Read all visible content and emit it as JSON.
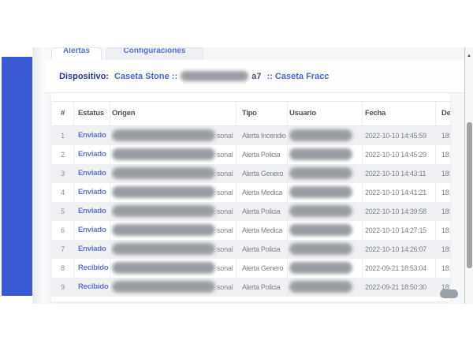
{
  "tabs": [
    {
      "label": "Alertas",
      "active": true
    },
    {
      "label": "Configuraciones",
      "active": false
    }
  ],
  "device_bar": {
    "label": "Dispositivo:",
    "device_name": "Caseta Stone",
    "separator": "::",
    "device_id_redacted": true,
    "device_id_visible_suffix": "a7",
    "location": "Caseta Fracc"
  },
  "table": {
    "columns": [
      "#",
      "Estatus",
      "Origen",
      "Tipo",
      "Usuario",
      "Fecha",
      "Des"
    ],
    "redaction": {
      "origen_redacted": true,
      "origen_visible_suffix": "sonal",
      "usuario_redacted": true
    },
    "last_column_visible_value": "18:",
    "rows": [
      {
        "num": "1",
        "estatus": "Enviado",
        "tipo": "Alerta Incendio",
        "fecha": "2022-10-10 14:45:59"
      },
      {
        "num": "2",
        "estatus": "Enviado",
        "tipo": "Alerta Policia",
        "fecha": "2022-10-10 14:45:29"
      },
      {
        "num": "3",
        "estatus": "Enviado",
        "tipo": "Alerta Genero",
        "fecha": "2022-10-10 14:43:11"
      },
      {
        "num": "4",
        "estatus": "Enviado",
        "tipo": "Alerta Medica",
        "fecha": "2022-10-10 14:41:21"
      },
      {
        "num": "5",
        "estatus": "Enviado",
        "tipo": "Alerta Policia",
        "fecha": "2022-10-10 14:39:58"
      },
      {
        "num": "6",
        "estatus": "Enviado",
        "tipo": "Alerta Medica",
        "fecha": "2022-10-10 14:27:15"
      },
      {
        "num": "7",
        "estatus": "Enviado",
        "tipo": "Alerta Policia",
        "fecha": "2022-10-10 14:26:07"
      },
      {
        "num": "8",
        "estatus": "Recibido",
        "tipo": "Alerta Genero",
        "fecha": "2022-09-21 18:53:04"
      },
      {
        "num": "9",
        "estatus": "Recibido",
        "tipo": "Alerta Policia",
        "fecha": "2022-09-21 18:50:30"
      }
    ]
  },
  "icons": {
    "scroll_up_arrow": "▲"
  },
  "colors": {
    "sidebar_blue": "#3b59d3",
    "accent_blue": "#5a70d4",
    "label_navy": "#2b3a8c",
    "status_blue": "#6072d9",
    "row_stripe": "#f0f1f4",
    "text_gray": "#7c818a"
  }
}
